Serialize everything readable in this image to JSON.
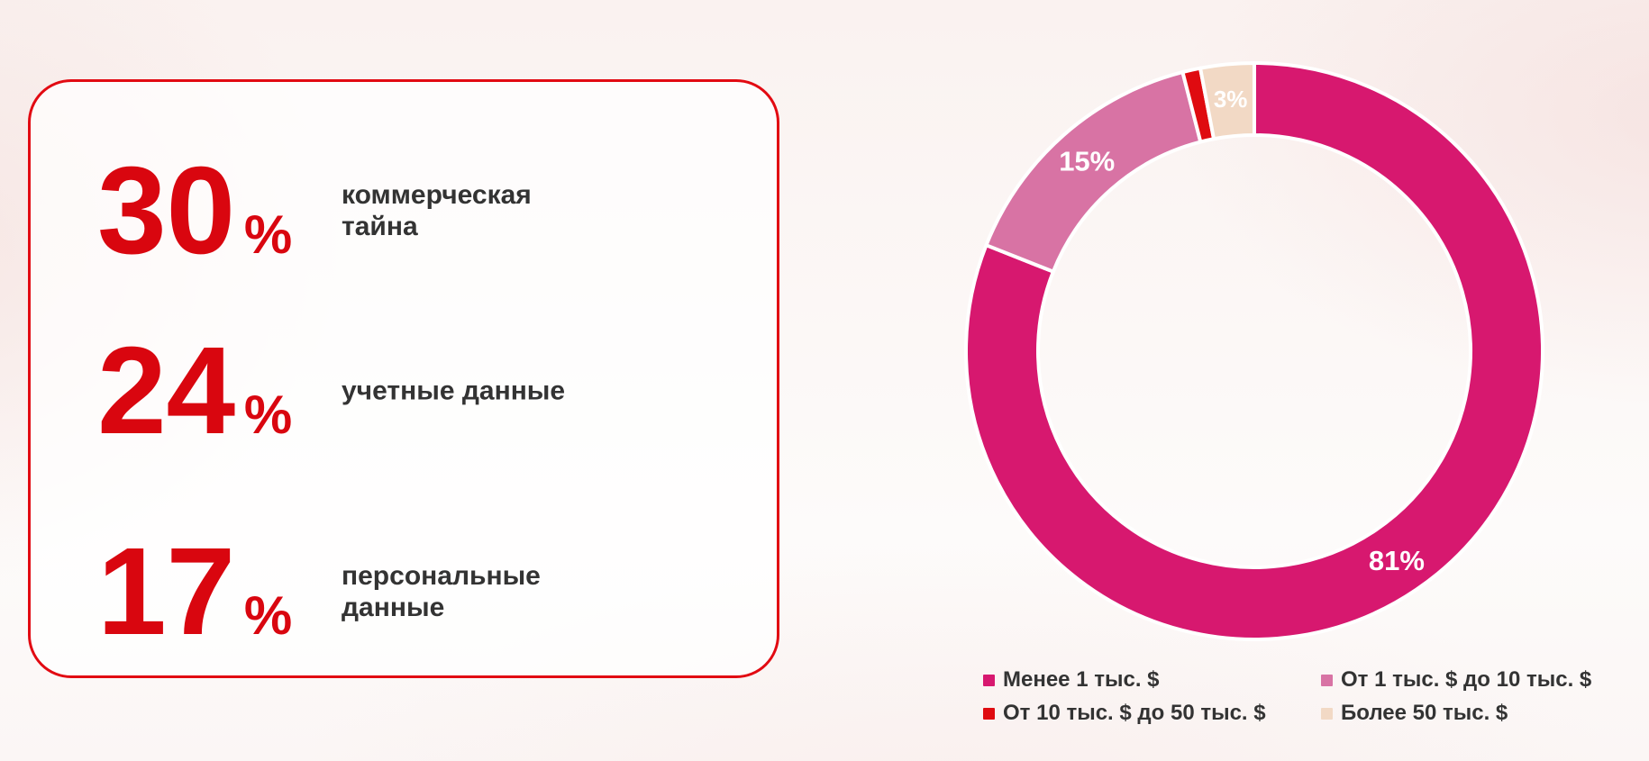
{
  "stats_card": {
    "border_color": "#E20A12",
    "value_color": "#D9060F",
    "label_color": "#333333",
    "items": [
      {
        "value": "30",
        "unit": "%",
        "label_lines": [
          "коммерческая",
          "тайна"
        ]
      },
      {
        "value": "24",
        "unit": "%",
        "label_lines": [
          "учетные данные",
          ""
        ]
      },
      {
        "value": "17",
        "unit": "%",
        "label_lines": [
          "персональные",
          "данные"
        ]
      }
    ]
  },
  "chart_data": {
    "type": "pie",
    "subtype": "donut",
    "direction": "clockwise",
    "start_angle_deg": 0,
    "values_are_percent": true,
    "label_text_color": "#FFFFFF",
    "separator_color": "#FFFFFF",
    "legend_position": "bottom",
    "segments": [
      {
        "label": "Менее 1 тыс. $",
        "value": 81,
        "value_label": "81%",
        "color": "#D7186F"
      },
      {
        "label": "От 1 тыс. $ до 10 тыс. $",
        "value": 15,
        "value_label": "15%",
        "color": "#D873A4"
      },
      {
        "label": "От 10 тыс. $ до 50 тыс. $",
        "value": 1,
        "value_label": "",
        "color": "#DF0B10"
      },
      {
        "label": "Более 50 тыс. $",
        "value": 3,
        "value_label": "3%",
        "color": "#F2D9C5"
      }
    ]
  }
}
